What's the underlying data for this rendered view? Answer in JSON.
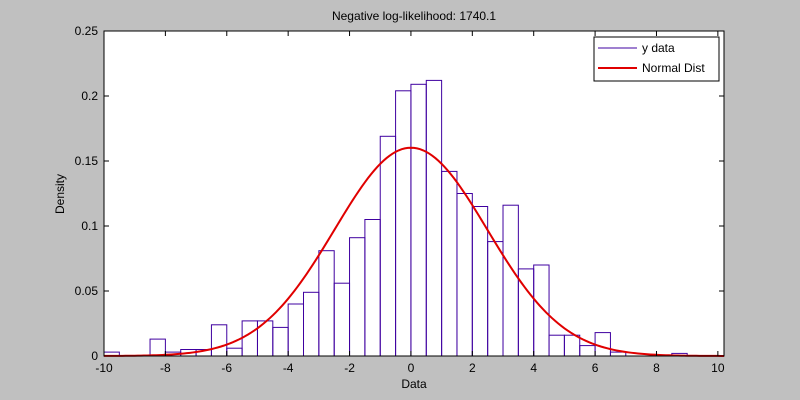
{
  "chart_data": {
    "type": "bar",
    "title": "Negative log-likelihood: 1740.1",
    "xlabel": "Data",
    "ylabel": "Density",
    "xlim": [
      -10,
      10.2
    ],
    "ylim": [
      0,
      0.25
    ],
    "xticks": [
      -10,
      -8,
      -6,
      -4,
      -2,
      0,
      2,
      4,
      6,
      8,
      10
    ],
    "yticks": [
      0,
      0.05,
      0.1,
      0.15,
      0.2,
      0.25
    ],
    "ytick_labels": [
      "0",
      "0.05",
      "0.1",
      "0.15",
      "0.2",
      "0.25"
    ],
    "grid": false,
    "legend_position": "top-right",
    "legend": [
      "y data",
      "Normal Dist"
    ],
    "colors": {
      "histogram": "#3f00a0",
      "normal_curve": "#e00000",
      "figure_background": "#c0c0c0",
      "axes_background": "#ffffff"
    },
    "histogram": {
      "name": "y data",
      "bin_width": 0.5,
      "bin_starts": [
        -10,
        -9.5,
        -9,
        -8.5,
        -8,
        -7.5,
        -7,
        -6.5,
        -6,
        -5.5,
        -5,
        -4.5,
        -4,
        -3.5,
        -3,
        -2.5,
        -2,
        -1.5,
        -1,
        -0.5,
        0,
        0.5,
        1,
        1.5,
        2,
        2.5,
        3,
        3.5,
        4,
        4.5,
        5,
        5.5,
        6,
        6.5,
        7,
        7.5,
        8,
        8.5,
        9,
        9.5
      ],
      "values": [
        0.003,
        0,
        0,
        0.013,
        0.003,
        0.005,
        0.005,
        0.024,
        0.006,
        0.027,
        0.027,
        0.022,
        0.04,
        0.049,
        0.081,
        0.056,
        0.091,
        0.105,
        0.169,
        0.204,
        0.209,
        0.212,
        0.142,
        0.125,
        0.115,
        0.088,
        0.116,
        0.067,
        0.07,
        0.016,
        0.016,
        0.008,
        0.018,
        0.003,
        0,
        0,
        0,
        0.002,
        0,
        0
      ]
    },
    "normal_fit": {
      "name": "Normal Dist",
      "mu": 0,
      "sigma": 2.49
    }
  }
}
